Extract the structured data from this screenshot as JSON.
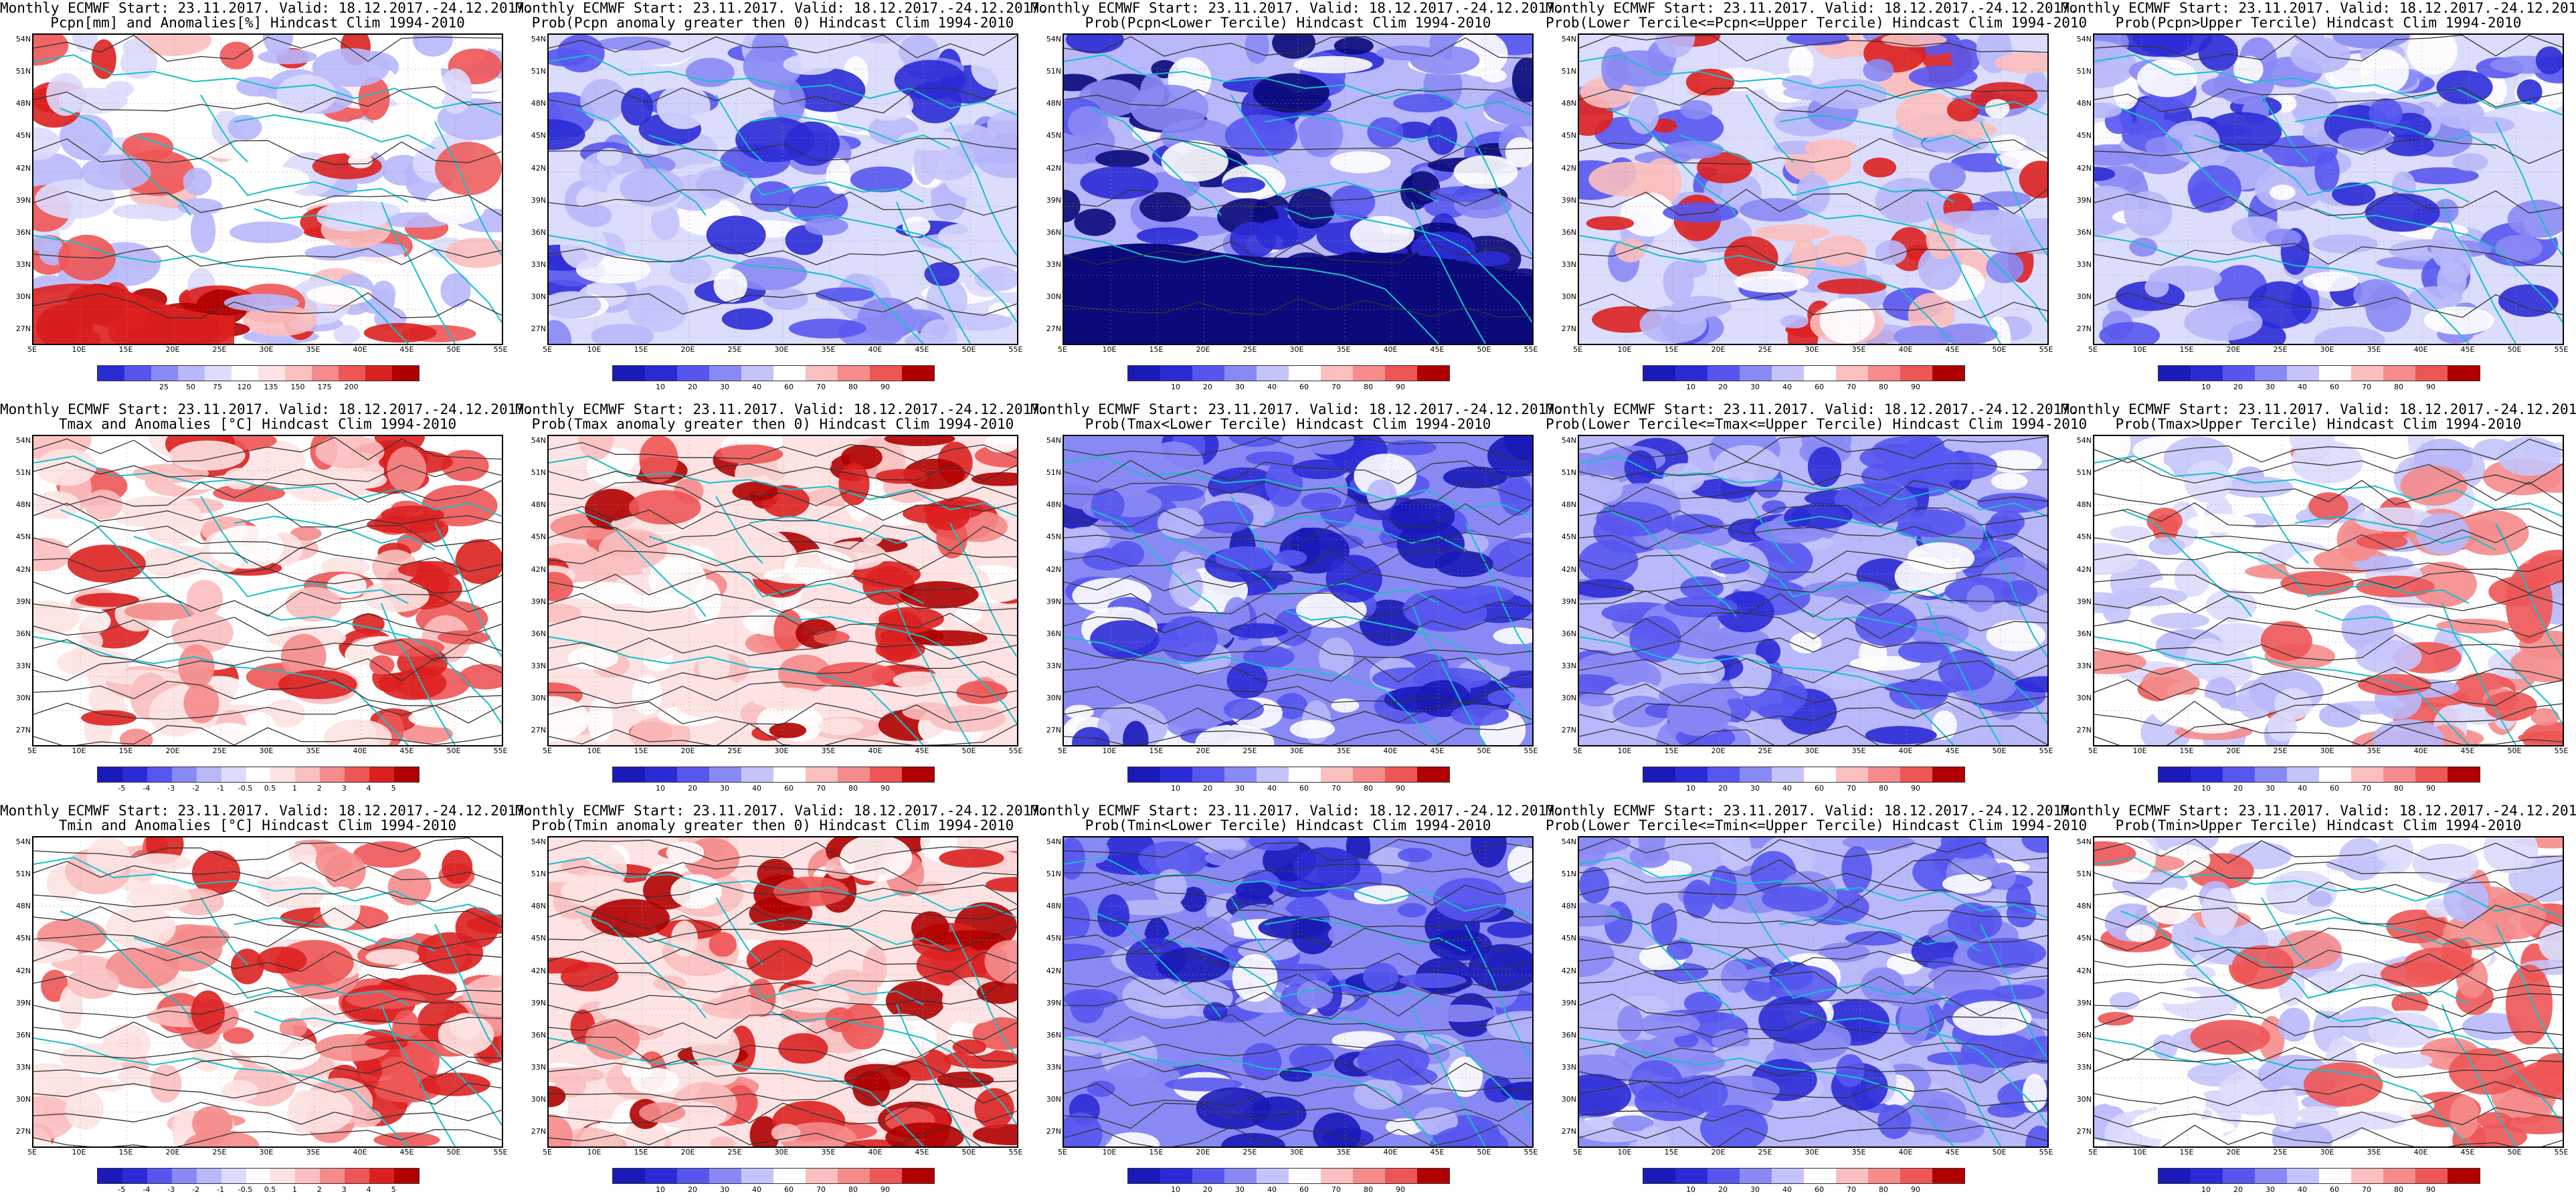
{
  "header": "Monthly ECMWF Start: 23.11.2017. Valid: 18.12.2017.-24.12.2017.",
  "axes": {
    "lat": [
      "54N",
      "51N",
      "48N",
      "45N",
      "42N",
      "39N",
      "36N",
      "33N",
      "30N",
      "27N"
    ],
    "lon": [
      "5E",
      "10E",
      "15E",
      "20E",
      "25E",
      "30E",
      "35E",
      "40E",
      "45E",
      "50E",
      "55E"
    ]
  },
  "scales": {
    "precip_anom": {
      "labels": [
        "25",
        "50",
        "75",
        "120",
        "135",
        "150",
        "175",
        "200"
      ],
      "colors": [
        "#2b2bd6",
        "#5656ef",
        "#8989f5",
        "#b8b8fb",
        "#dcdcfd",
        "#ffffff",
        "#fde3e3",
        "#fbbfbf",
        "#f58b8b",
        "#ee5555",
        "#db2020",
        "#b00000"
      ]
    },
    "temp_anom": {
      "labels": [
        "-5",
        "-4",
        "-3",
        "-2",
        "-1",
        "-0.5",
        "0.5",
        "1",
        "2",
        "3",
        "4",
        "5"
      ],
      "colors": [
        "#1a1ab8",
        "#2b2bd6",
        "#5656ef",
        "#8989f5",
        "#b8b8fb",
        "#dcdcfd",
        "#ffffff",
        "#fde3e3",
        "#fbbfbf",
        "#f58b8b",
        "#ee5555",
        "#db2020",
        "#b00000"
      ]
    },
    "prob": {
      "labels": [
        "10",
        "20",
        "30",
        "40",
        "60",
        "70",
        "80",
        "90"
      ],
      "colors": [
        "#1a1ab8",
        "#2b2bd6",
        "#5656ef",
        "#8989f5",
        "#c4c4fb",
        "#ffffff",
        "#fbbfbf",
        "#f58b8b",
        "#ee5555",
        "#b00000"
      ]
    }
  },
  "panels": [
    {
      "title": "Pcpn[mm] and Anomalies[%] Hindcast Clim 1994-2010",
      "scale": "precip_anom",
      "colors": [
        "#ffffff",
        "#dcdcfd",
        "#b8b8fb",
        "#fbbfbf",
        "#ffffff",
        "#dcdcfd",
        "#b8b8fb",
        "#ee5555",
        "#db2020"
      ],
      "field": "precip_anom",
      "contours": "sparse"
    },
    {
      "title": "Prob(Pcpn anomaly greater then 0) Hindcast Clim 1994-2010",
      "scale": "prob",
      "colors": [
        "#dcdcfd",
        "#ffffff",
        "#c4c4fb",
        "#b8b8fb",
        "#8989f5",
        "#5656ef",
        "#2b2bd6",
        "#dcdcfd"
      ],
      "field": "prob_lowblue",
      "contours": "sparse"
    },
    {
      "title": "Prob(Pcpn<Lower Tercile) Hindcast Clim 1994-2010",
      "scale": "prob",
      "colors": [
        "#b8b8fb",
        "#8989f5",
        "#5656ef",
        "#ffffff",
        "#2b2bd6",
        "#8989f5",
        "#0a0a7a",
        "#0a0a7a"
      ],
      "field": "prob_dark",
      "contours": "sparse"
    },
    {
      "title": "Prob(Lower Tercile<=Pcpn<=Upper Tercile) Hindcast Clim 1994-2010",
      "scale": "prob",
      "colors": [
        "#dcdcfd",
        "#b8b8fb",
        "#8989f5",
        "#5656ef",
        "#ffffff",
        "#b8b8fb",
        "#fbbfbf",
        "#db2020"
      ],
      "field": "prob_mix",
      "contours": "sparse"
    },
    {
      "title": "Prob(Pcpn>Upper Tercile) Hindcast Clim 1994-2010",
      "scale": "prob",
      "colors": [
        "#dcdcfd",
        "#b8b8fb",
        "#8989f5",
        "#ffffff",
        "#5656ef",
        "#b8b8fb",
        "#2b2bd6",
        "#8989f5"
      ],
      "field": "prob_lowblue",
      "contours": "sparse"
    },
    {
      "title": "Tmax and Anomalies [°C] Hindcast Clim 1994-2010",
      "scale": "temp_anom",
      "colors": [
        "#ffffff",
        "#fde3e3",
        "#fbbfbf",
        "#ffffff",
        "#fde3e3",
        "#f58b8b",
        "#ee5555",
        "#db2020"
      ],
      "field": "warm_east",
      "contours": "dense"
    },
    {
      "title": "Prob(Tmax anomaly greater then 0) Hindcast Clim 1994-2010",
      "scale": "prob",
      "colors": [
        "#fde3e3",
        "#ffffff",
        "#fbbfbf",
        "#f58b8b",
        "#fde3e3",
        "#ee5555",
        "#db2020",
        "#b00000"
      ],
      "field": "warm_east",
      "contours": "dense"
    },
    {
      "title": "Prob(Tmax<Lower Tercile) Hindcast Clim 1994-2010",
      "scale": "prob",
      "colors": [
        "#8989f5",
        "#b8b8fb",
        "#5656ef",
        "#ffffff",
        "#8989f5",
        "#2b2bd6",
        "#1a1ab8",
        "#5656ef"
      ],
      "field": "cold_east",
      "contours": "dense"
    },
    {
      "title": "Prob(Lower Tercile<=Tmax<=Upper Tercile) Hindcast Clim 1994-2010",
      "scale": "prob",
      "colors": [
        "#b8b8fb",
        "#8989f5",
        "#5656ef",
        "#ffffff",
        "#c4c4fb",
        "#2b2bd6",
        "#5656ef",
        "#8989f5"
      ],
      "field": "cold_east",
      "contours": "dense"
    },
    {
      "title": "Prob(Tmax>Upper Tercile) Hindcast Clim 1994-2010",
      "scale": "prob",
      "colors": [
        "#ffffff",
        "#dcdcfd",
        "#c4c4fb",
        "#ffffff",
        "#b8b8fb",
        "#dcdcfd",
        "#f58b8b",
        "#ee5555"
      ],
      "field": "pale_red_east",
      "contours": "dense"
    },
    {
      "title": "Tmin and Anomalies [°C] Hindcast Clim 1994-2010",
      "scale": "temp_anom",
      "colors": [
        "#ffffff",
        "#fde3e3",
        "#fbbfbf",
        "#ffffff",
        "#fde3e3",
        "#f58b8b",
        "#ee5555",
        "#db2020"
      ],
      "field": "warm_east",
      "contours": "dense"
    },
    {
      "title": "Prob(Tmin anomaly greater then 0) Hindcast Clim 1994-2010",
      "scale": "prob",
      "colors": [
        "#fde3e3",
        "#ffffff",
        "#fbbfbf",
        "#f58b8b",
        "#fde3e3",
        "#ee5555",
        "#db2020",
        "#b00000"
      ],
      "field": "warm_east",
      "contours": "dense"
    },
    {
      "title": "Prob(Tmin<Lower Tercile) Hindcast Clim 1994-2010",
      "scale": "prob",
      "colors": [
        "#8989f5",
        "#b8b8fb",
        "#5656ef",
        "#ffffff",
        "#8989f5",
        "#2b2bd6",
        "#1a1ab8",
        "#5656ef"
      ],
      "field": "cold_east",
      "contours": "dense"
    },
    {
      "title": "Prob(Lower Tercile<=Tmin<=Upper Tercile) Hindcast Clim 1994-2010",
      "scale": "prob",
      "colors": [
        "#b8b8fb",
        "#8989f5",
        "#5656ef",
        "#ffffff",
        "#c4c4fb",
        "#2b2bd6",
        "#5656ef",
        "#8989f5"
      ],
      "field": "cold_east",
      "contours": "dense"
    },
    {
      "title": "Prob(Tmin>Upper Tercile) Hindcast Clim 1994-2010",
      "scale": "prob",
      "colors": [
        "#ffffff",
        "#dcdcfd",
        "#c4c4fb",
        "#ffffff",
        "#b8b8fb",
        "#dcdcfd",
        "#f58b8b",
        "#ee5555"
      ],
      "field": "pale_red_east",
      "contours": "dense"
    }
  ]
}
